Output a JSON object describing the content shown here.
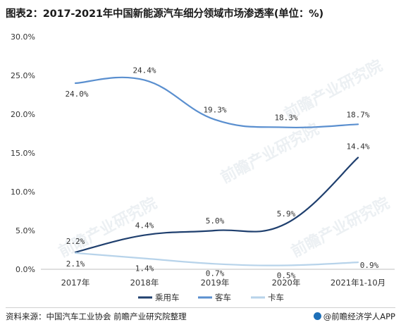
{
  "title": "图表2：2017-2021年中国新能源汽车细分领域市场渗透率(单位：%)",
  "footer": {
    "source": "资料来源：中国汽车工业协会 前瞻产业研究院整理",
    "brand": "@前瞻经济学人APP"
  },
  "watermark": "前瞻产业研究院",
  "chart_data": {
    "type": "line",
    "categories": [
      "2017年",
      "2018年",
      "2019年",
      "2020年",
      "2021年1-10月"
    ],
    "ylim": [
      0,
      30
    ],
    "yticks": [
      "0.0%",
      "5.0%",
      "10.0%",
      "15.0%",
      "20.0%",
      "25.0%",
      "30.0%"
    ],
    "ytick_values": [
      0,
      5,
      10,
      15,
      20,
      25,
      30
    ],
    "legend_position": "bottom",
    "grid": false,
    "series": [
      {
        "name": "乘用车",
        "values": [
          2.2,
          4.4,
          5.0,
          5.9,
          14.4
        ],
        "labels": [
          "2.2%",
          "4.4%",
          "5.0%",
          "5.9%",
          "14.4%"
        ],
        "color": "#1f3f6e"
      },
      {
        "name": "客车",
        "values": [
          24.0,
          24.4,
          19.3,
          18.3,
          18.7
        ],
        "labels": [
          "24.0%",
          "24.4%",
          "19.3%",
          "18.3%",
          "18.7%"
        ],
        "color": "#5a8fcf"
      },
      {
        "name": "卡车",
        "values": [
          2.1,
          1.4,
          0.7,
          0.5,
          0.9
        ],
        "labels": [
          "2.1%",
          "1.4%",
          "0.7%",
          "0.5%",
          "0.9%"
        ],
        "color": "#b7d3ea"
      }
    ]
  }
}
